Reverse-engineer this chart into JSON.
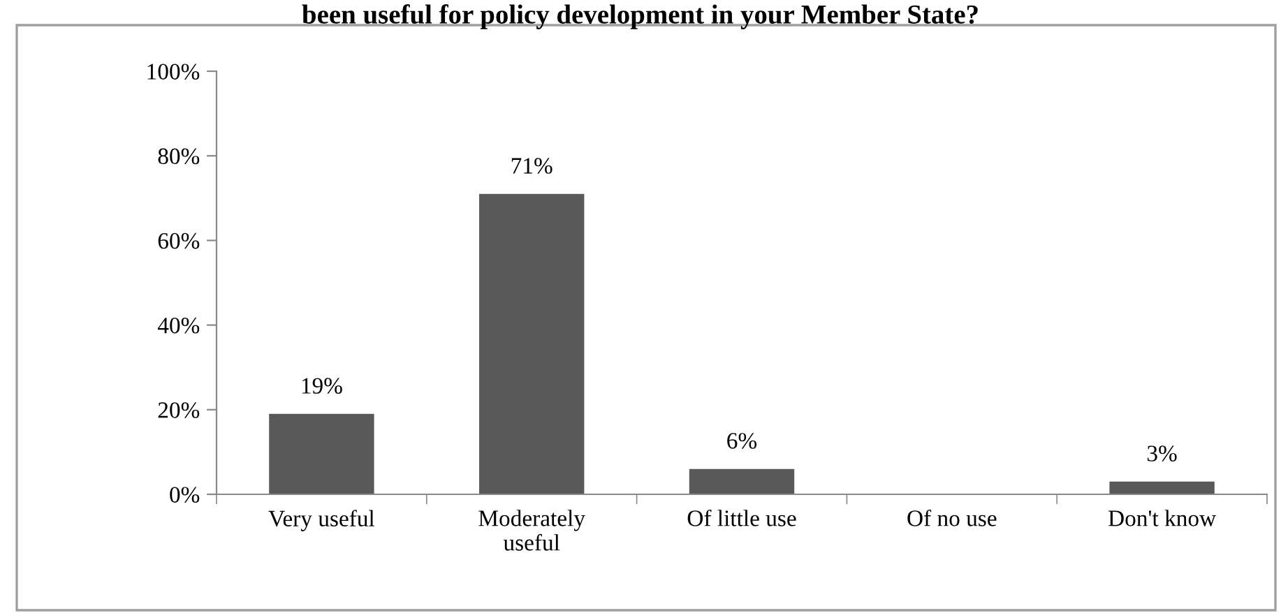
{
  "chart_data": {
    "type": "bar",
    "title": "been useful for policy development in your Member State?",
    "categories": [
      "Very useful",
      "Moderately\nuseful",
      "Of little use",
      "Of no use",
      "Don't know"
    ],
    "values": [
      19,
      71,
      6,
      0,
      3
    ],
    "value_labels": [
      "19%",
      "71%",
      "6%",
      null,
      "3%"
    ],
    "color": "#595959",
    "ylim": [
      0,
      100
    ],
    "yticks": [
      {
        "value": 0,
        "label": "0%"
      },
      {
        "value": 20,
        "label": "20%"
      },
      {
        "value": 40,
        "label": "40%"
      },
      {
        "value": 60,
        "label": "60%"
      },
      {
        "value": 80,
        "label": "80%"
      },
      {
        "value": 100,
        "label": "100%"
      }
    ],
    "grid": false,
    "legend": false
  }
}
